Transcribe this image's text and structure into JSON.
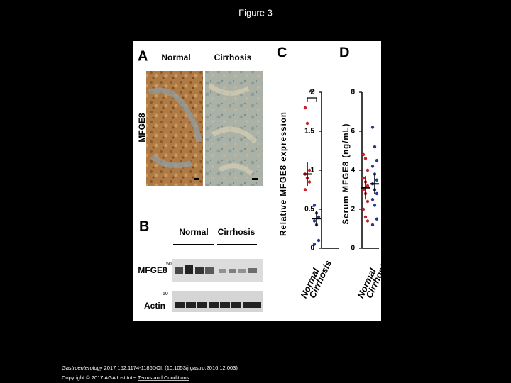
{
  "title": "Figure 3",
  "figure": {
    "panel_a": {
      "label": "A",
      "columns": [
        "Normal",
        "Cirrhosis"
      ],
      "row_label": "MFGE8"
    },
    "panel_b": {
      "label": "B",
      "groups": [
        "Normal",
        "Cirrhosis"
      ],
      "rows": [
        {
          "name": "MFGE8",
          "marker": "50"
        },
        {
          "name": "Actin",
          "marker": "50"
        }
      ]
    }
  },
  "chart_data": [
    {
      "type": "strip",
      "panel": "C",
      "y_label": "Relative MFGE8 expression",
      "categories": [
        "Normal",
        "Cirrhosis"
      ],
      "colors": [
        "#c8232c",
        "#2a3990"
      ],
      "points": [
        [
          1.8,
          1.6,
          1.0,
          0.95,
          0.9,
          0.85,
          0.75
        ],
        [
          0.55,
          0.45,
          0.4,
          0.35,
          0.3,
          0.1,
          0.05
        ]
      ],
      "means": [
        0.95,
        0.38
      ],
      "errors": [
        0.15,
        0.1
      ],
      "significance": "**",
      "ylim": [
        0,
        2
      ],
      "yticks": [
        0,
        0.5,
        1,
        1.5,
        2
      ]
    },
    {
      "type": "strip",
      "panel": "D",
      "y_label": "Serum MFGE8 (ng/mL)",
      "categories": [
        "Normal",
        "Cirrhosis"
      ],
      "colors": [
        "#c8232c",
        "#2a3990"
      ],
      "points": [
        [
          4.8,
          4.6,
          4.0,
          3.6,
          3.4,
          3.2,
          3.0,
          2.8,
          2.4,
          2.0,
          1.6,
          1.4
        ],
        [
          6.2,
          5.2,
          4.5,
          4.2,
          3.8,
          3.5,
          3.3,
          3.0,
          2.8,
          2.5,
          2.2,
          1.5,
          1.2
        ]
      ],
      "means": [
        3.1,
        3.3
      ],
      "errors": [
        0.6,
        0.5
      ],
      "ylim": [
        0,
        8
      ],
      "yticks": [
        0,
        2,
        4,
        6,
        8
      ]
    }
  ],
  "footer": {
    "journal": "Gastroenterology",
    "citation": " 2017 152:1174-1186DOI: (10.1053/j.gastro.2016.12.003)",
    "copyright": "Copyright © 2017 AGA Institute",
    "link": "Terms and Conditions"
  }
}
